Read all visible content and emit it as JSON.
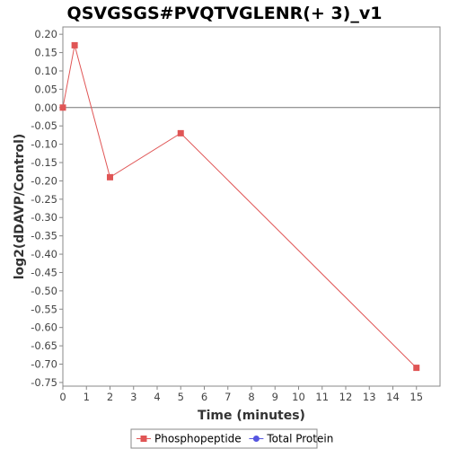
{
  "chart_data": {
    "type": "line",
    "title": "QSVGSGS#PVQTVGLENR(+ 3)_v1",
    "xlabel": "Time (minutes)",
    "ylabel": "log2(dDAVP/Control)",
    "xlim": [
      0,
      16
    ],
    "ylim": [
      -0.76,
      0.22
    ],
    "x_ticks": [
      0,
      1,
      2,
      3,
      4,
      5,
      6,
      7,
      8,
      9,
      10,
      11,
      12,
      13,
      14,
      15
    ],
    "y_ticks": [
      0.2,
      0.15,
      0.1,
      0.05,
      0.0,
      -0.05,
      -0.1,
      -0.15,
      -0.2,
      -0.25,
      -0.3,
      -0.35,
      -0.4,
      -0.45,
      -0.5,
      -0.55,
      -0.6,
      -0.65,
      -0.7,
      -0.75
    ],
    "x_tick_labels": [
      "0",
      "1",
      "2",
      "3",
      "4",
      "5",
      "6",
      "7",
      "8",
      "9",
      "10",
      "11",
      "12",
      "13",
      "14",
      "15"
    ],
    "y_tick_labels": [
      "0.20",
      "0.15",
      "0.10",
      "0.05",
      "0.00",
      "-0.05",
      "-0.10",
      "-0.15",
      "-0.20",
      "-0.25",
      "-0.30",
      "-0.35",
      "-0.40",
      "-0.45",
      "-0.50",
      "-0.55",
      "-0.60",
      "-0.65",
      "-0.70",
      "-0.75"
    ],
    "grid": false,
    "legend_position": "bottom",
    "series": [
      {
        "name": "Phosphopeptide",
        "color": "#e05555",
        "marker": "square",
        "x": [
          0,
          0.5,
          2,
          5,
          15
        ],
        "y": [
          0.0,
          0.17,
          -0.19,
          -0.07,
          -0.71
        ]
      },
      {
        "name": "Total Protein",
        "color": "#5555e0",
        "marker": "circle",
        "x": [],
        "y": []
      }
    ]
  }
}
